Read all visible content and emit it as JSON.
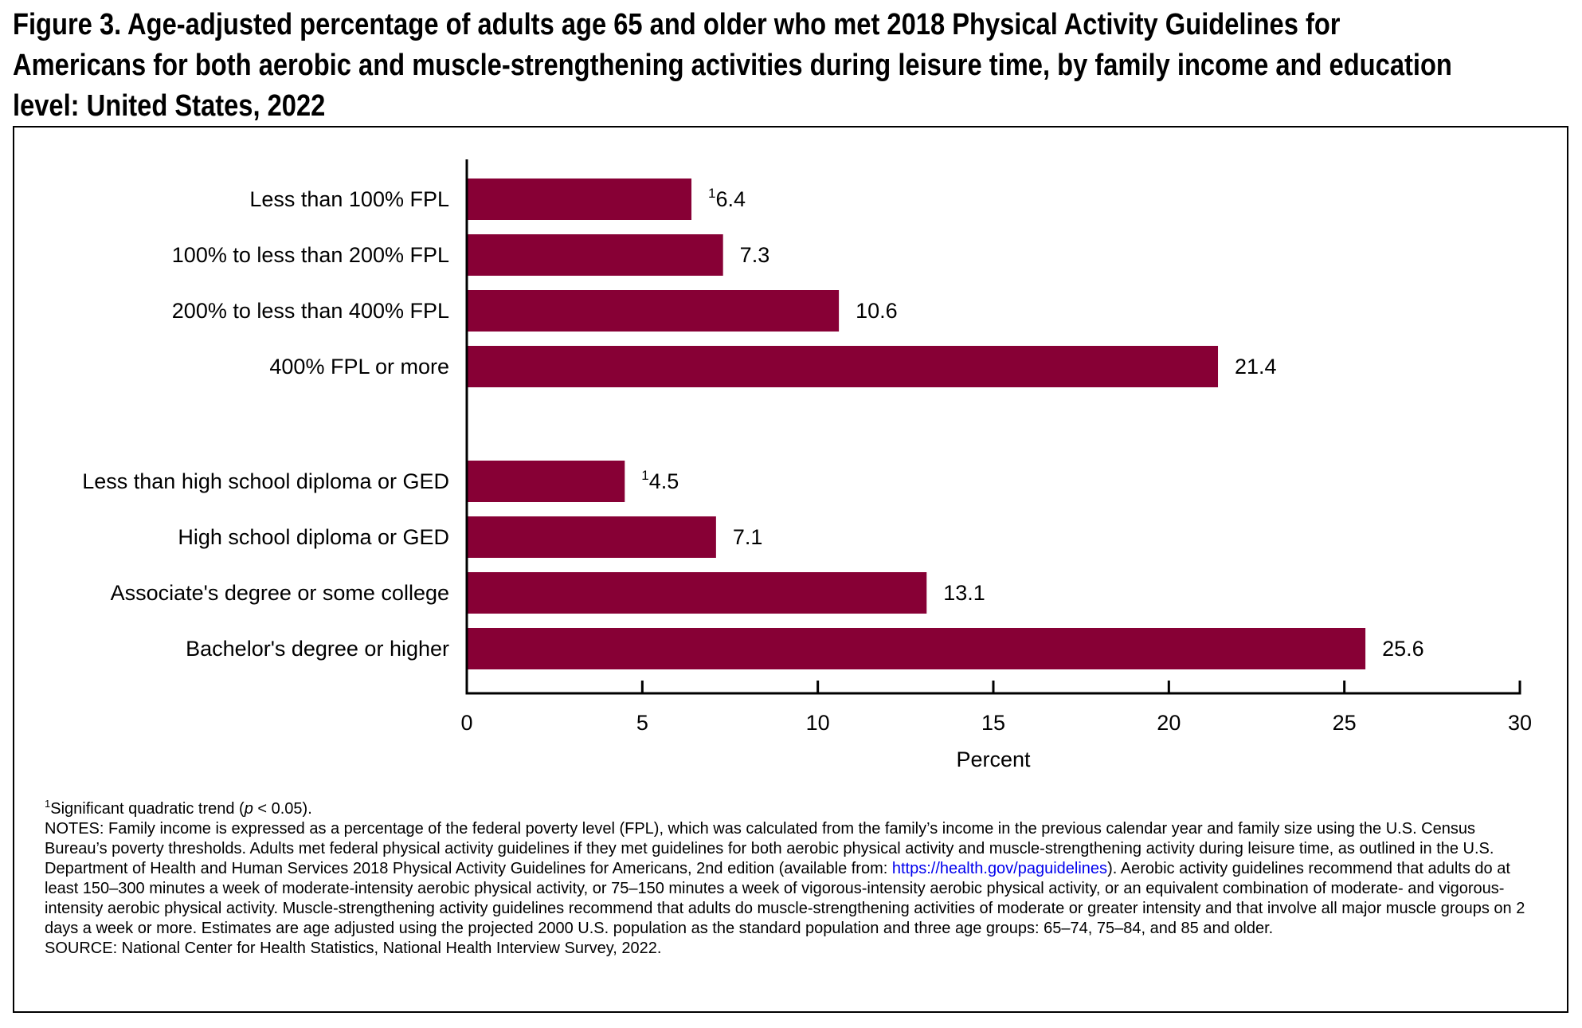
{
  "title": {
    "line1": "Figure 3. Age-adjusted percentage of adults age 65 and older who met 2018 Physical Activity Guidelines for",
    "line2": "Americans for both aerobic and muscle-strengthening activities during leisure time, by family income and education",
    "line3": "level: United States, 2022"
  },
  "chart_data": {
    "type": "bar",
    "orientation": "horizontal",
    "title": "Figure 3. Age-adjusted percentage of adults age 65 and older who met 2018 Physical Activity Guidelines for Americans for both aerobic and muscle-strengthening activities during leisure time, by family income and education level: United States, 2022",
    "xlabel": "Percent",
    "ylabel": "",
    "xlim": [
      0,
      30
    ],
    "xticks": [
      0,
      5,
      10,
      15,
      20,
      25,
      30
    ],
    "grid": false,
    "bar_color": "#870035",
    "groups": [
      {
        "categories": [
          "Less than 100% FPL",
          "100% to less than 200% FPL",
          "200% to less than 400% FPL",
          "400% FPL or more"
        ],
        "values": [
          6.4,
          7.3,
          10.6,
          21.4
        ],
        "value_labels": [
          "6.4",
          "7.3",
          "10.6",
          "21.4"
        ],
        "footnote_marks": [
          "1",
          "",
          "",
          ""
        ]
      },
      {
        "categories": [
          "Less than high school diploma or GED",
          "High school diploma or GED",
          "Associate's degree or some college",
          "Bachelor's degree or higher"
        ],
        "values": [
          4.5,
          7.1,
          13.1,
          25.6
        ],
        "value_labels": [
          "4.5",
          "7.1",
          "13.1",
          "25.6"
        ],
        "footnote_marks": [
          "1",
          "",
          "",
          ""
        ]
      }
    ]
  },
  "notes": {
    "footnote_mark": "1",
    "footnote_text_a": "Significant quadratic trend (",
    "footnote_p": "p",
    "footnote_text_b": " < 0.05).",
    "notes_text_a": "NOTES: Family income is expressed as a percentage of the federal poverty level (FPL), which was calculated from the family’s income in the previous calendar year and family size using the U.S. Census Bureau’s poverty thresholds. Adults met federal physical activity guidelines if they met guidelines for both aerobic physical activity and muscle-strengthening activity during leisure time, as outlined in the U.S. Department of Health and Human Services 2018 Physical Activity Guidelines for Americans, 2nd edition (available from: ",
    "notes_link": "https://health.gov/paguidelines",
    "notes_text_b": "). Aerobic activity guidelines recommend that adults do at least 150–300 minutes a week of moderate-intensity aerobic physical activity, or 75–150 minutes a week of vigorous-intensity aerobic physical activity, or an equivalent combination of moderate- and vigorous-intensity aerobic physical activity. Muscle-strengthening activity guidelines recommend that adults do muscle-strengthening activities of moderate or greater intensity and that involve all major muscle groups on 2 days a week or more. Estimates are age adjusted using the projected 2000 U.S. population as the standard population and three age groups: 65–74, 75–84, and 85 and older.",
    "source": "SOURCE: National Center for Health Statistics, National Health Interview Survey, 2022."
  }
}
